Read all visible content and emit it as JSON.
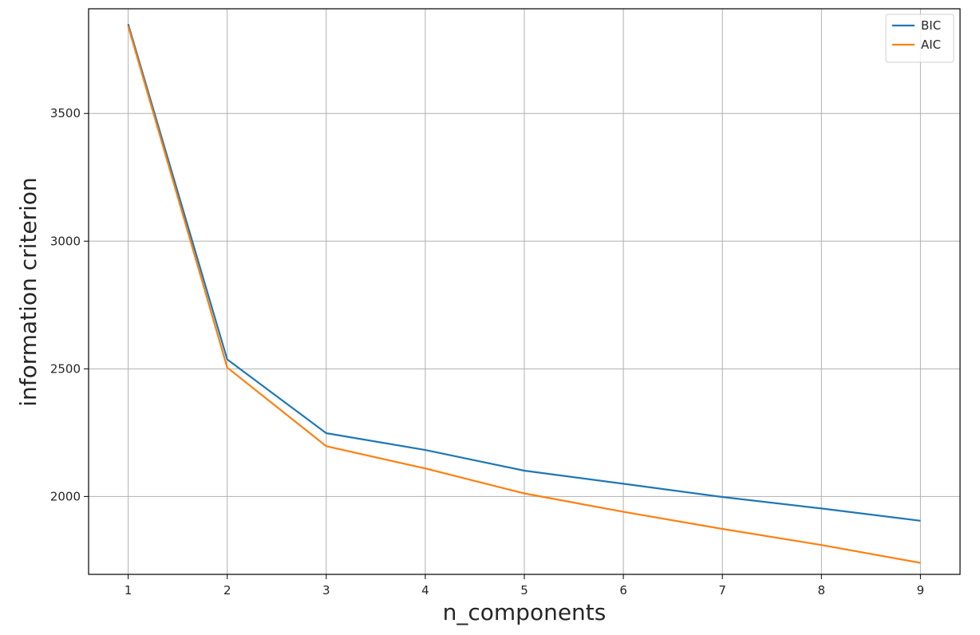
{
  "chart_data": {
    "type": "line",
    "title": "",
    "xlabel": "n_components",
    "ylabel": "information criterion",
    "x": [
      1,
      2,
      3,
      4,
      5,
      6,
      7,
      8,
      9
    ],
    "xticks": [
      "1",
      "2",
      "3",
      "4",
      "5",
      "6",
      "7",
      "8",
      "9"
    ],
    "yticks": [
      2000,
      2500,
      3000,
      3500
    ],
    "xlim": [
      0.6,
      9.4
    ],
    "ylim": [
      1695,
      3910
    ],
    "grid": true,
    "legend_position": "top-right",
    "series": [
      {
        "name": "BIC",
        "color": "#1f77b4",
        "values": [
          3850,
          2537,
          2248,
          2182,
          2101,
          2050,
          1998,
          1953,
          1905
        ]
      },
      {
        "name": "AIC",
        "color": "#ff7f0e",
        "values": [
          3842,
          2505,
          2197,
          2110,
          2012,
          1940,
          1873,
          1810,
          1740
        ]
      }
    ]
  }
}
